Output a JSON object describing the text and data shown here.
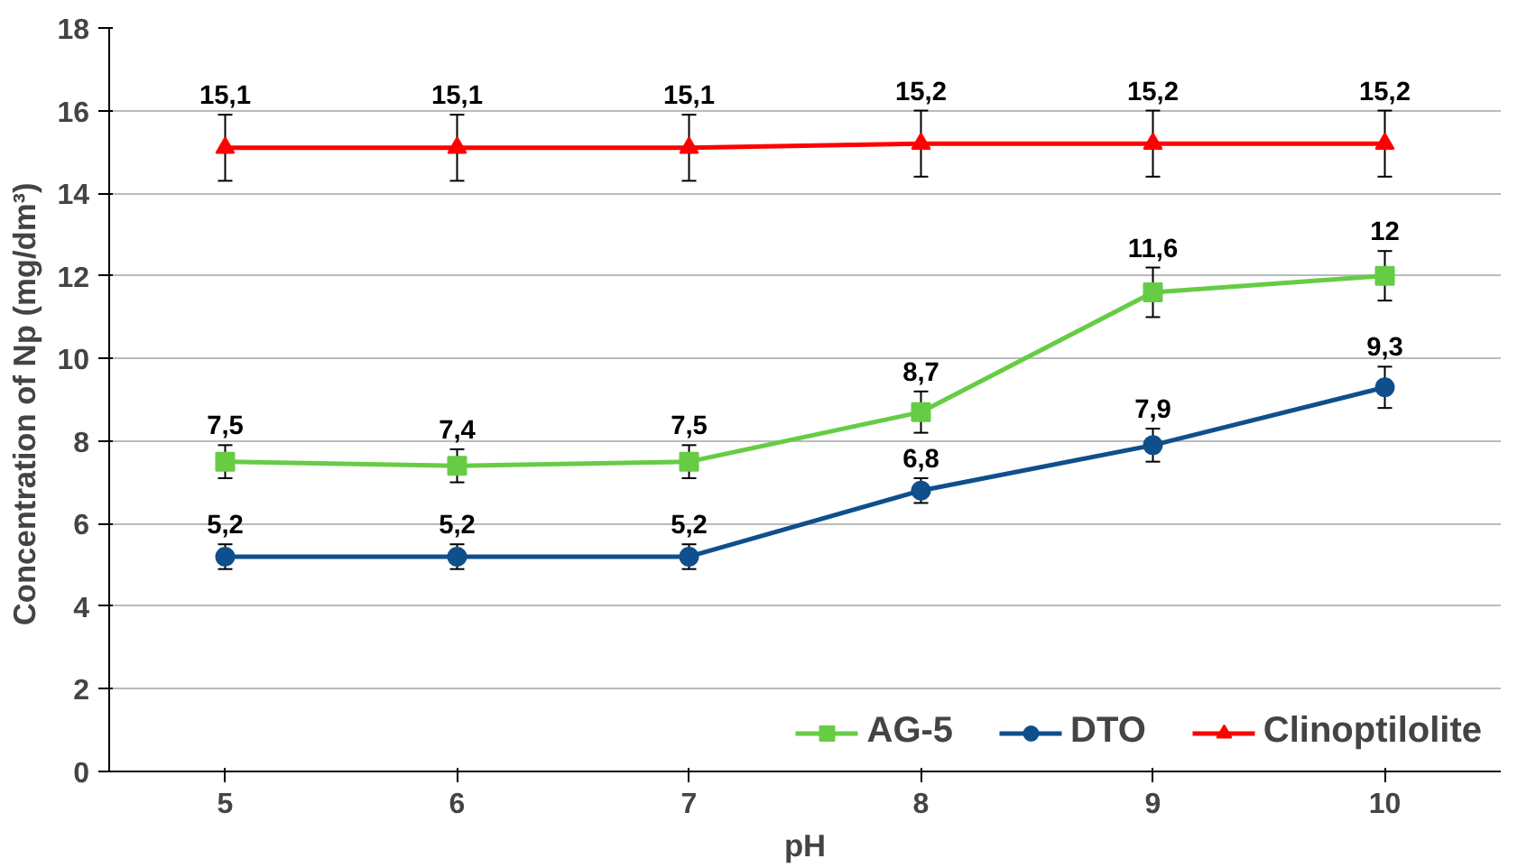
{
  "chart_data": {
    "type": "line",
    "xlabel": "pH",
    "ylabel": "Concentration of  Np (mg/dm³)",
    "categories": [
      "5",
      "6",
      "7",
      "8",
      "9",
      "10"
    ],
    "ylim": [
      0,
      18
    ],
    "yticks": [
      0,
      2,
      4,
      6,
      8,
      10,
      12,
      14,
      16,
      18
    ],
    "grid": "y",
    "legend": "bottom right",
    "line_style": "solid",
    "series": [
      {
        "name": "AG-5",
        "color": "#66cc44",
        "marker": "square",
        "values": [
          7.5,
          7.4,
          7.5,
          8.7,
          11.6,
          12
        ],
        "errors": [
          0.4,
          0.4,
          0.4,
          0.5,
          0.6,
          0.6
        ],
        "value_labels": [
          "7,5",
          "7,4",
          "7,5",
          "8,7",
          "11,6",
          "12"
        ]
      },
      {
        "name": "DTO",
        "color": "#0f4f8c",
        "marker": "circle",
        "values": [
          5.2,
          5.2,
          5.2,
          6.8,
          7.9,
          9.3
        ],
        "errors": [
          0.3,
          0.3,
          0.3,
          0.3,
          0.4,
          0.5
        ],
        "value_labels": [
          "5,2",
          "5,2",
          "5,2",
          "6,8",
          "7,9",
          "9,3"
        ]
      },
      {
        "name": "Clinoptilolite",
        "color": "#ff0000",
        "marker": "triangle",
        "values": [
          15.1,
          15.1,
          15.1,
          15.2,
          15.2,
          15.2
        ],
        "errors": [
          0.8,
          0.8,
          0.8,
          0.8,
          0.8,
          0.8
        ],
        "value_labels": [
          "15,1",
          "15,1",
          "15,1",
          "15,2",
          "15,2",
          "15,2"
        ]
      }
    ]
  }
}
